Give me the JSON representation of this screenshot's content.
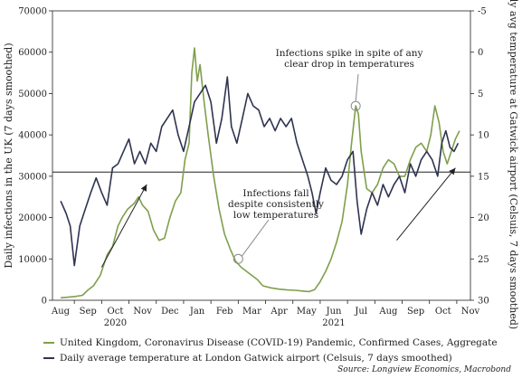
{
  "chart_data": {
    "type": "line",
    "title": "",
    "ylabel": "Daily infections in the UK (7 days smoothed)",
    "y2label": "Daily avg temperature at Gatwick airport (Celsuis, 7 days smoothed)",
    "ylim": [
      0,
      70000
    ],
    "y2lim": [
      30,
      -5
    ],
    "y2_inverted": true,
    "yticks": [
      "0",
      "10000",
      "20000",
      "30000",
      "40000",
      "50000",
      "60000",
      "70000"
    ],
    "y2ticks": [
      "-5",
      "0",
      "5",
      "10",
      "15",
      "20",
      "25",
      "30"
    ],
    "x_months": [
      "Aug",
      "Sep",
      "Oct",
      "Nov",
      "Dec",
      "Jan",
      "Feb",
      "Mar",
      "Apr",
      "May",
      "Jun",
      "Jul",
      "Aug",
      "Sep",
      "Oct",
      "Nov"
    ],
    "x_years": [
      {
        "label": "2020",
        "month_index": 2
      },
      {
        "label": "2021",
        "month_index": 10
      }
    ],
    "reference_line_temp": 14.5,
    "series": [
      {
        "name": "United Kingdom, Coronavirus Disease (COVID-19) Pandemic, Confirmed Cases, Aggregate",
        "axis": "left",
        "color": "#7f9f4c",
        "points": [
          [
            0,
            600
          ],
          [
            0.5,
            900
          ],
          [
            0.8,
            1200
          ],
          [
            1.0,
            2500
          ],
          [
            1.2,
            3500
          ],
          [
            1.45,
            6000
          ],
          [
            1.7,
            11000
          ],
          [
            1.9,
            13000
          ],
          [
            2.1,
            18000
          ],
          [
            2.25,
            20000
          ],
          [
            2.45,
            22000
          ],
          [
            2.7,
            23500
          ],
          [
            2.85,
            25000
          ],
          [
            3.0,
            23000
          ],
          [
            3.2,
            21500
          ],
          [
            3.4,
            17000
          ],
          [
            3.6,
            14500
          ],
          [
            3.8,
            15000
          ],
          [
            4.0,
            20000
          ],
          [
            4.2,
            24000
          ],
          [
            4.4,
            26000
          ],
          [
            4.55,
            34000
          ],
          [
            4.7,
            38000
          ],
          [
            4.8,
            55000
          ],
          [
            4.9,
            61000
          ],
          [
            5.0,
            53000
          ],
          [
            5.1,
            57000
          ],
          [
            5.25,
            48000
          ],
          [
            5.4,
            40000
          ],
          [
            5.6,
            30000
          ],
          [
            5.8,
            22000
          ],
          [
            6.0,
            16000
          ],
          [
            6.2,
            12500
          ],
          [
            6.4,
            9500
          ],
          [
            6.6,
            8000
          ],
          [
            6.9,
            6500
          ],
          [
            7.2,
            5000
          ],
          [
            7.4,
            3500
          ],
          [
            7.7,
            3000
          ],
          [
            8.0,
            2700
          ],
          [
            8.3,
            2500
          ],
          [
            8.6,
            2400
          ],
          [
            8.9,
            2200
          ],
          [
            9.1,
            2100
          ],
          [
            9.3,
            2600
          ],
          [
            9.5,
            4500
          ],
          [
            9.7,
            7000
          ],
          [
            9.9,
            10000
          ],
          [
            10.1,
            14000
          ],
          [
            10.3,
            19000
          ],
          [
            10.5,
            28000
          ],
          [
            10.65,
            38000
          ],
          [
            10.8,
            47000
          ],
          [
            10.9,
            45000
          ],
          [
            11.0,
            36000
          ],
          [
            11.2,
            27000
          ],
          [
            11.4,
            26000
          ],
          [
            11.6,
            28000
          ],
          [
            11.8,
            32000
          ],
          [
            12.0,
            34000
          ],
          [
            12.2,
            33000
          ],
          [
            12.4,
            30000
          ],
          [
            12.6,
            30000
          ],
          [
            12.8,
            34000
          ],
          [
            13.0,
            37000
          ],
          [
            13.2,
            38000
          ],
          [
            13.4,
            36000
          ],
          [
            13.55,
            40000
          ],
          [
            13.7,
            47000
          ],
          [
            13.85,
            43000
          ],
          [
            14.0,
            36000
          ],
          [
            14.15,
            33000
          ],
          [
            14.3,
            36000
          ],
          [
            14.45,
            39000
          ],
          [
            14.6,
            41000
          ]
        ]
      },
      {
        "name": "Daily average temperature at London Gatwick airport (Celsuis, 7 days smoothed)",
        "axis": "right",
        "color": "#2e3450",
        "points": [
          [
            0,
            18
          ],
          [
            0.2,
            19.5
          ],
          [
            0.35,
            21
          ],
          [
            0.5,
            25.8
          ],
          [
            0.7,
            21
          ],
          [
            0.9,
            19
          ],
          [
            1.1,
            17
          ],
          [
            1.3,
            15.2
          ],
          [
            1.5,
            17
          ],
          [
            1.7,
            18.5
          ],
          [
            1.9,
            14
          ],
          [
            2.1,
            13.5
          ],
          [
            2.3,
            12
          ],
          [
            2.5,
            10.5
          ],
          [
            2.7,
            13.5
          ],
          [
            2.9,
            12
          ],
          [
            3.1,
            13.5
          ],
          [
            3.3,
            11
          ],
          [
            3.5,
            12
          ],
          [
            3.7,
            9
          ],
          [
            3.9,
            8
          ],
          [
            4.1,
            7
          ],
          [
            4.3,
            10
          ],
          [
            4.5,
            12
          ],
          [
            4.7,
            9
          ],
          [
            4.9,
            6
          ],
          [
            5.1,
            5
          ],
          [
            5.3,
            4
          ],
          [
            5.5,
            6
          ],
          [
            5.7,
            11
          ],
          [
            5.9,
            8
          ],
          [
            6.1,
            3
          ],
          [
            6.25,
            9
          ],
          [
            6.45,
            11
          ],
          [
            6.65,
            8
          ],
          [
            6.85,
            5
          ],
          [
            7.05,
            6.5
          ],
          [
            7.25,
            7
          ],
          [
            7.45,
            9
          ],
          [
            7.65,
            8
          ],
          [
            7.85,
            9.5
          ],
          [
            8.05,
            8
          ],
          [
            8.25,
            9
          ],
          [
            8.45,
            8
          ],
          [
            8.65,
            11
          ],
          [
            8.85,
            13
          ],
          [
            9.05,
            15
          ],
          [
            9.2,
            17
          ],
          [
            9.35,
            19.5
          ],
          [
            9.5,
            17
          ],
          [
            9.7,
            14
          ],
          [
            9.9,
            15.5
          ],
          [
            10.1,
            16
          ],
          [
            10.3,
            15
          ],
          [
            10.5,
            13
          ],
          [
            10.7,
            12
          ],
          [
            10.85,
            18
          ],
          [
            11.0,
            22
          ],
          [
            11.2,
            19
          ],
          [
            11.4,
            17
          ],
          [
            11.6,
            18.5
          ],
          [
            11.8,
            16
          ],
          [
            12.0,
            17.5
          ],
          [
            12.2,
            16
          ],
          [
            12.4,
            15
          ],
          [
            12.6,
            17
          ],
          [
            12.8,
            13.5
          ],
          [
            13.0,
            15
          ],
          [
            13.2,
            13
          ],
          [
            13.4,
            12
          ],
          [
            13.6,
            13
          ],
          [
            13.8,
            15
          ],
          [
            13.95,
            11
          ],
          [
            14.1,
            9.5
          ],
          [
            14.25,
            11.5
          ],
          [
            14.4,
            12
          ],
          [
            14.55,
            11
          ]
        ]
      }
    ],
    "annotations": [
      {
        "text_lines": [
          "Infections spike in spite of any",
          "clear drop in temperatures"
        ],
        "target": [
          10.8,
          47000
        ]
      },
      {
        "text_lines": [
          "Infections fall",
          "despite consistently",
          "low temperatures"
        ],
        "target": [
          6.5,
          10000
        ]
      }
    ],
    "arrows": [
      {
        "from": [
          1.5,
          8000
        ],
        "to": [
          3.15,
          28000
        ]
      },
      {
        "from": [
          12.3,
          14500
        ],
        "to": [
          14.45,
          32000
        ]
      }
    ],
    "legend_position": "bottom-left"
  },
  "legend": {
    "series_1": "United Kingdom, Coronavirus Disease (COVID-19) Pandemic, Confirmed Cases, Aggregate",
    "series_2": "Daily average temperature at London Gatwick airport (Celsuis, 7 days smoothed)"
  },
  "source": "Source: Longview Economics, Macrobond"
}
